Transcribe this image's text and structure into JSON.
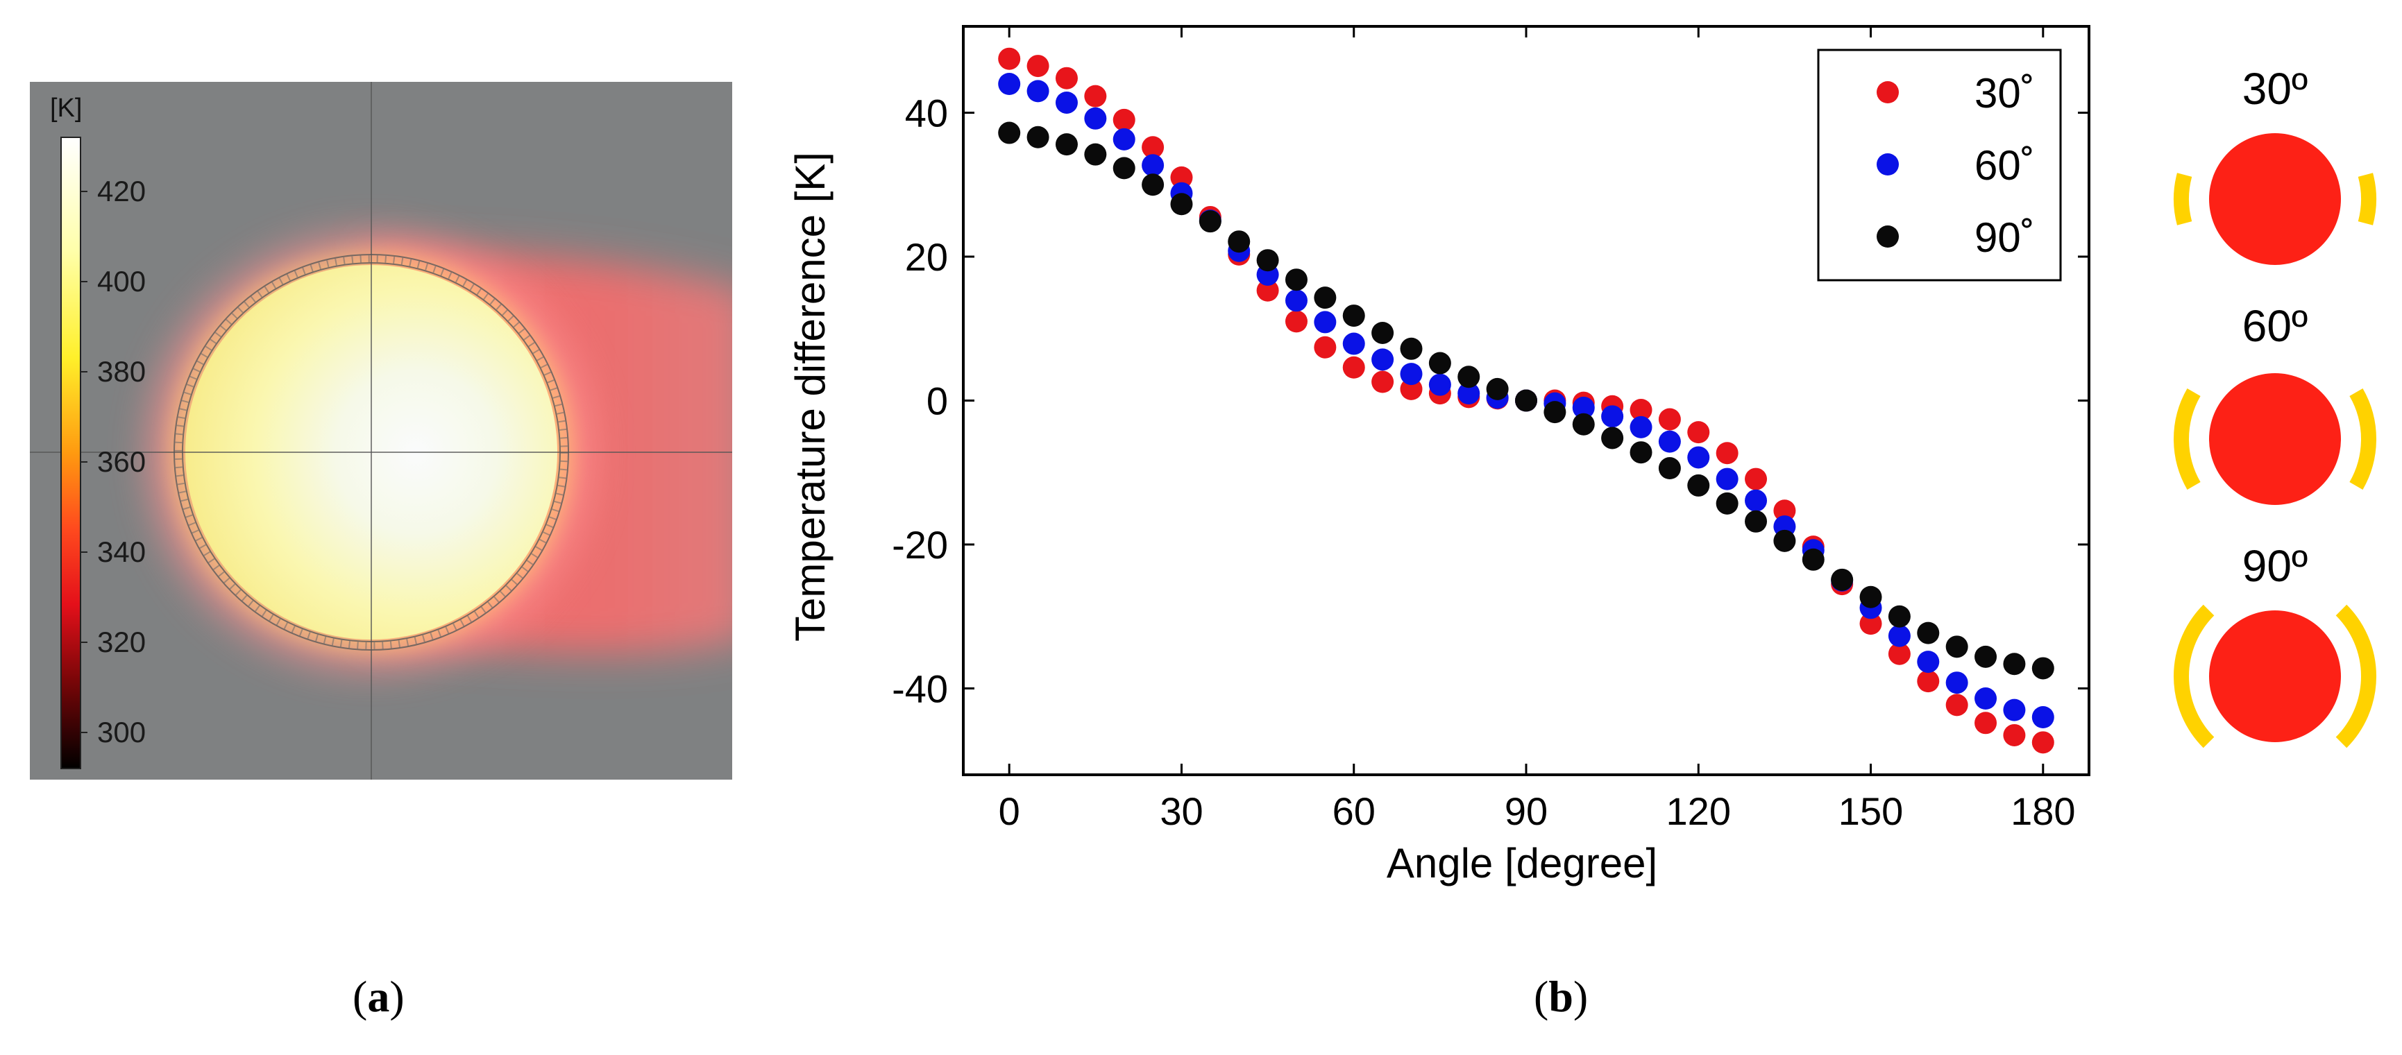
{
  "panel_a": {
    "colorbar_unit": "[K]",
    "colorbar_ticks": [
      "420",
      "400",
      "380",
      "360",
      "340",
      "320",
      "300"
    ],
    "colorbar_values": [
      420,
      400,
      380,
      360,
      340,
      320,
      300
    ],
    "colorbar_range": [
      292,
      432
    ],
    "colors": {
      "background": "#7f8182",
      "hot": "#ffffff",
      "warm": "#ffff66",
      "mid": "#ff8c00",
      "cool": "#ff2020",
      "cold": "#000000"
    }
  },
  "captions": {
    "a_open": "(",
    "a_letter": "a",
    "a_close": ")",
    "b_open": "(",
    "b_letter": "b",
    "b_close": ")"
  },
  "chart_data": {
    "type": "scatter",
    "xlabel": "Angle [degree]",
    "ylabel": "Temperature difference [K]",
    "xlim": [
      -8,
      188
    ],
    "ylim": [
      -52,
      52
    ],
    "xticks": [
      0,
      30,
      60,
      90,
      120,
      150,
      180
    ],
    "yticks": [
      -40,
      -20,
      0,
      20,
      40
    ],
    "x": [
      0,
      5,
      10,
      15,
      20,
      25,
      30,
      35,
      40,
      45,
      50,
      55,
      60,
      65,
      70,
      75,
      80,
      85,
      90,
      95,
      100,
      105,
      110,
      115,
      120,
      125,
      130,
      135,
      140,
      145,
      150,
      155,
      160,
      165,
      170,
      175,
      180
    ],
    "series": [
      {
        "name": "30°",
        "color": "#e8151b",
        "values": [
          47.5,
          46.5,
          44.8,
          42.3,
          39,
          35.2,
          31,
          25.5,
          20.3,
          15.3,
          11,
          7.4,
          4.6,
          2.6,
          1.6,
          1,
          0.5,
          0.3,
          0,
          0,
          -0.3,
          -0.8,
          -1.3,
          -2.6,
          -4.4,
          -7.3,
          -10.9,
          -15.3,
          -20.3,
          -25.5,
          -31,
          -35.2,
          -39,
          -42.3,
          -44.8,
          -46.5,
          -47.5
        ]
      },
      {
        "name": "60°",
        "color": "#0a12e6",
        "values": [
          44,
          43,
          41.4,
          39.2,
          36.3,
          32.7,
          28.8,
          25,
          20.8,
          17.5,
          13.9,
          10.9,
          7.9,
          5.7,
          3.7,
          2.2,
          1,
          0.4,
          0,
          -0.4,
          -1,
          -2.2,
          -3.7,
          -5.7,
          -7.9,
          -10.9,
          -13.9,
          -17.5,
          -20.8,
          -25,
          -28.8,
          -32.7,
          -36.3,
          -39.2,
          -41.4,
          -43,
          -44
        ]
      },
      {
        "name": "90°",
        "color": "#0a0a0a",
        "values": [
          37.2,
          36.6,
          35.6,
          34.2,
          32.3,
          30,
          27.3,
          24.9,
          22.1,
          19.5,
          16.8,
          14.3,
          11.8,
          9.4,
          7.2,
          5.2,
          3.3,
          1.6,
          0,
          -1.6,
          -3.3,
          -5.2,
          -7.2,
          -9.4,
          -11.8,
          -14.3,
          -16.8,
          -19.5,
          -22.1,
          -24.9,
          -27.3,
          -30,
          -32.3,
          -34.2,
          -35.6,
          -36.6,
          -37.2
        ]
      }
    ],
    "legend": {
      "position": "top-right",
      "entries": [
        "30˚",
        "60˚",
        "90˚"
      ]
    }
  },
  "panel_c": {
    "items": [
      {
        "label": "30º",
        "arc_span_deg": 30
      },
      {
        "label": "60º",
        "arc_span_deg": 60
      },
      {
        "label": "90º",
        "arc_span_deg": 90
      }
    ],
    "colors": {
      "disk": "#fd2116",
      "arc": "#ffd200"
    }
  }
}
